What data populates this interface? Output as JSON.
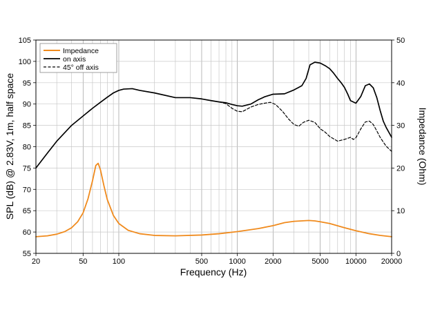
{
  "chart_data": {
    "type": "line",
    "xscale": "log",
    "xlim": [
      20,
      20000
    ],
    "ylim_left": [
      55,
      105
    ],
    "ylim_right": [
      0,
      50
    ],
    "xlabel": "Frequency (Hz)",
    "ylabel_left": "SPL (dB) @ 2.83V, 1m, half space",
    "ylabel_right": "Impedance (Ohm)",
    "x_ticks": [
      {
        "value": 20,
        "label": "20"
      },
      {
        "value": 50,
        "label": "50"
      },
      {
        "value": 100,
        "label": "100"
      },
      {
        "value": 500,
        "label": "500"
      },
      {
        "value": 1000,
        "label": "1000"
      },
      {
        "value": 2000,
        "label": "2000"
      },
      {
        "value": 5000,
        "label": "5000"
      },
      {
        "value": 10000,
        "label": "10000"
      },
      {
        "value": 20000,
        "label": "20000"
      }
    ],
    "y_ticks_left": [
      {
        "value": 55,
        "label": "55"
      },
      {
        "value": 60,
        "label": "60"
      },
      {
        "value": 65,
        "label": "65"
      },
      {
        "value": 70,
        "label": "70"
      },
      {
        "value": 75,
        "label": "75"
      },
      {
        "value": 80,
        "label": "80"
      },
      {
        "value": 85,
        "label": "85"
      },
      {
        "value": 90,
        "label": "90"
      },
      {
        "value": 95,
        "label": "95"
      },
      {
        "value": 100,
        "label": "100"
      },
      {
        "value": 105,
        "label": "105"
      }
    ],
    "y_ticks_right": [
      {
        "value": 0,
        "label": "0"
      },
      {
        "value": 10,
        "label": "10"
      },
      {
        "value": 20,
        "label": "20"
      },
      {
        "value": 30,
        "label": "30"
      },
      {
        "value": 40,
        "label": "40"
      },
      {
        "value": 50,
        "label": "50"
      }
    ],
    "grid": true,
    "legend_position": "top-left",
    "series": [
      {
        "name": "Impedance",
        "axis": "right",
        "color": "#f08a1c",
        "style": "solid",
        "points": [
          [
            20,
            3.9
          ],
          [
            25,
            4.1
          ],
          [
            30,
            4.5
          ],
          [
            35,
            5.1
          ],
          [
            40,
            6.0
          ],
          [
            45,
            7.4
          ],
          [
            50,
            9.5
          ],
          [
            55,
            12.8
          ],
          [
            60,
            17.0
          ],
          [
            64,
            20.6
          ],
          [
            67,
            21.1
          ],
          [
            70,
            19.6
          ],
          [
            75,
            15.8
          ],
          [
            80,
            12.6
          ],
          [
            90,
            8.9
          ],
          [
            100,
            7.0
          ],
          [
            120,
            5.4
          ],
          [
            150,
            4.6
          ],
          [
            200,
            4.2
          ],
          [
            300,
            4.1
          ],
          [
            500,
            4.3
          ],
          [
            700,
            4.6
          ],
          [
            1000,
            5.1
          ],
          [
            1500,
            5.8
          ],
          [
            2000,
            6.5
          ],
          [
            2500,
            7.2
          ],
          [
            3000,
            7.5
          ],
          [
            4000,
            7.7
          ],
          [
            4500,
            7.6
          ],
          [
            5000,
            7.4
          ],
          [
            6000,
            7.0
          ],
          [
            8000,
            6.0
          ],
          [
            10000,
            5.3
          ],
          [
            13000,
            4.6
          ],
          [
            16000,
            4.2
          ],
          [
            20000,
            3.9
          ]
        ]
      },
      {
        "name": "on axis",
        "axis": "left",
        "color": "#000000",
        "style": "solid",
        "points": [
          [
            20,
            75.0
          ],
          [
            25,
            78.5
          ],
          [
            30,
            81.3
          ],
          [
            40,
            85.0
          ],
          [
            50,
            87.2
          ],
          [
            60,
            89.0
          ],
          [
            70,
            90.4
          ],
          [
            80,
            91.6
          ],
          [
            90,
            92.6
          ],
          [
            100,
            93.2
          ],
          [
            110,
            93.5
          ],
          [
            130,
            93.6
          ],
          [
            150,
            93.2
          ],
          [
            200,
            92.6
          ],
          [
            300,
            91.5
          ],
          [
            350,
            91.5
          ],
          [
            400,
            91.5
          ],
          [
            500,
            91.2
          ],
          [
            600,
            90.8
          ],
          [
            700,
            90.5
          ],
          [
            800,
            90.3
          ],
          [
            900,
            89.9
          ],
          [
            1000,
            89.6
          ],
          [
            1100,
            89.5
          ],
          [
            1300,
            90.0
          ],
          [
            1500,
            91.0
          ],
          [
            1700,
            91.7
          ],
          [
            2000,
            92.3
          ],
          [
            2500,
            92.4
          ],
          [
            3000,
            93.3
          ],
          [
            3500,
            94.3
          ],
          [
            3800,
            96.0
          ],
          [
            4100,
            99.2
          ],
          [
            4500,
            99.8
          ],
          [
            5000,
            99.6
          ],
          [
            5500,
            99.0
          ],
          [
            6000,
            98.3
          ],
          [
            6500,
            97.2
          ],
          [
            7000,
            96.0
          ],
          [
            7500,
            95.0
          ],
          [
            8000,
            93.9
          ],
          [
            8500,
            92.4
          ],
          [
            9000,
            90.8
          ],
          [
            10000,
            90.2
          ],
          [
            11000,
            91.8
          ],
          [
            12000,
            94.3
          ],
          [
            13000,
            94.7
          ],
          [
            14000,
            93.8
          ],
          [
            15000,
            91.5
          ],
          [
            16000,
            88.5
          ],
          [
            17000,
            86.0
          ],
          [
            18000,
            84.5
          ],
          [
            20000,
            82.2
          ]
        ]
      },
      {
        "name": "45° off axis",
        "axis": "left",
        "color": "#000000",
        "style": "dashed",
        "points": [
          [
            700,
            90.5
          ],
          [
            800,
            90.1
          ],
          [
            900,
            89.0
          ],
          [
            1000,
            88.3
          ],
          [
            1100,
            88.2
          ],
          [
            1300,
            89.3
          ],
          [
            1500,
            89.9
          ],
          [
            1700,
            90.2
          ],
          [
            1900,
            90.4
          ],
          [
            2100,
            89.9
          ],
          [
            2400,
            88.3
          ],
          [
            2700,
            86.5
          ],
          [
            3000,
            85.2
          ],
          [
            3300,
            84.8
          ],
          [
            3600,
            85.7
          ],
          [
            4000,
            86.2
          ],
          [
            4500,
            85.7
          ],
          [
            5000,
            84.2
          ],
          [
            5500,
            83.4
          ],
          [
            6000,
            82.4
          ],
          [
            7000,
            81.3
          ],
          [
            8000,
            81.7
          ],
          [
            9000,
            82.2
          ],
          [
            9500,
            81.7
          ],
          [
            10000,
            82.1
          ],
          [
            11000,
            84.2
          ],
          [
            12000,
            85.8
          ],
          [
            13000,
            86.0
          ],
          [
            14000,
            85.2
          ],
          [
            15000,
            83.7
          ],
          [
            16000,
            82.2
          ],
          [
            17000,
            81.1
          ],
          [
            18000,
            80.1
          ],
          [
            20000,
            78.9
          ]
        ]
      }
    ]
  }
}
